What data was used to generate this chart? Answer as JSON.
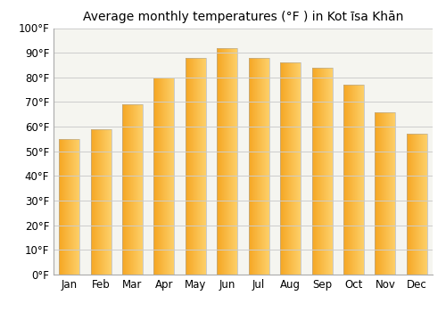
{
  "title": "Average monthly temperatures (°F ) in Kot īsa Khān",
  "months": [
    "Jan",
    "Feb",
    "Mar",
    "Apr",
    "May",
    "Jun",
    "Jul",
    "Aug",
    "Sep",
    "Oct",
    "Nov",
    "Dec"
  ],
  "values": [
    55,
    59,
    69,
    80,
    88,
    92,
    88,
    86,
    84,
    77,
    66,
    57
  ],
  "bar_color_left": "#F5A623",
  "bar_color_right": "#FDD06A",
  "ylim": [
    0,
    100
  ],
  "yticks": [
    0,
    10,
    20,
    30,
    40,
    50,
    60,
    70,
    80,
    90,
    100
  ],
  "ytick_labels": [
    "0°F",
    "10°F",
    "20°F",
    "30°F",
    "40°F",
    "50°F",
    "60°F",
    "70°F",
    "80°F",
    "90°F",
    "100°F"
  ],
  "background_color": "#ffffff",
  "plot_bg_color": "#f5f5f0",
  "grid_color": "#cccccc",
  "title_fontsize": 10,
  "tick_fontsize": 8.5
}
